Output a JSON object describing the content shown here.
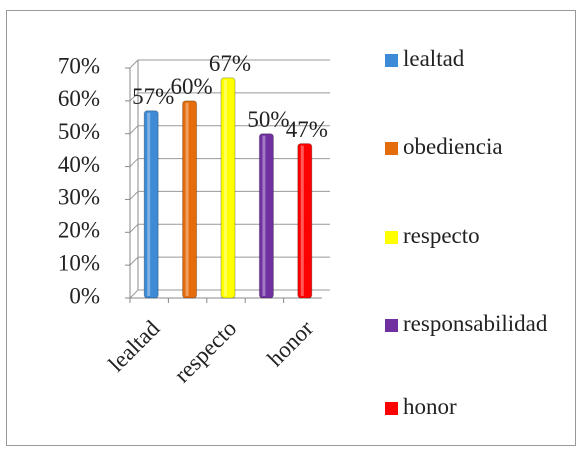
{
  "chart_data": {
    "type": "bar",
    "categories": [
      "lealtad",
      null,
      "respecto",
      null,
      "honor"
    ],
    "values": [
      57,
      60,
      67,
      50,
      47
    ],
    "value_labels": [
      "57%",
      "60%",
      "67%",
      "50%",
      "47%"
    ],
    "colors": [
      "#3d8ad6",
      "#e46c0a",
      "#ffff00",
      "#7030a0",
      "#ff0000"
    ],
    "legend": [
      "lealtad",
      "obediencia",
      "respecto",
      "responsabilidad",
      "honor"
    ],
    "ylim": [
      0,
      70
    ],
    "yticks": [
      {
        "value": 0,
        "label": "0%"
      },
      {
        "value": 10,
        "label": "10%"
      },
      {
        "value": 20,
        "label": "20%"
      },
      {
        "value": 30,
        "label": "30%"
      },
      {
        "value": 40,
        "label": "40%"
      },
      {
        "value": 50,
        "label": "50%"
      },
      {
        "value": 60,
        "label": "60%"
      },
      {
        "value": 70,
        "label": "70%"
      }
    ],
    "grid": true
  }
}
